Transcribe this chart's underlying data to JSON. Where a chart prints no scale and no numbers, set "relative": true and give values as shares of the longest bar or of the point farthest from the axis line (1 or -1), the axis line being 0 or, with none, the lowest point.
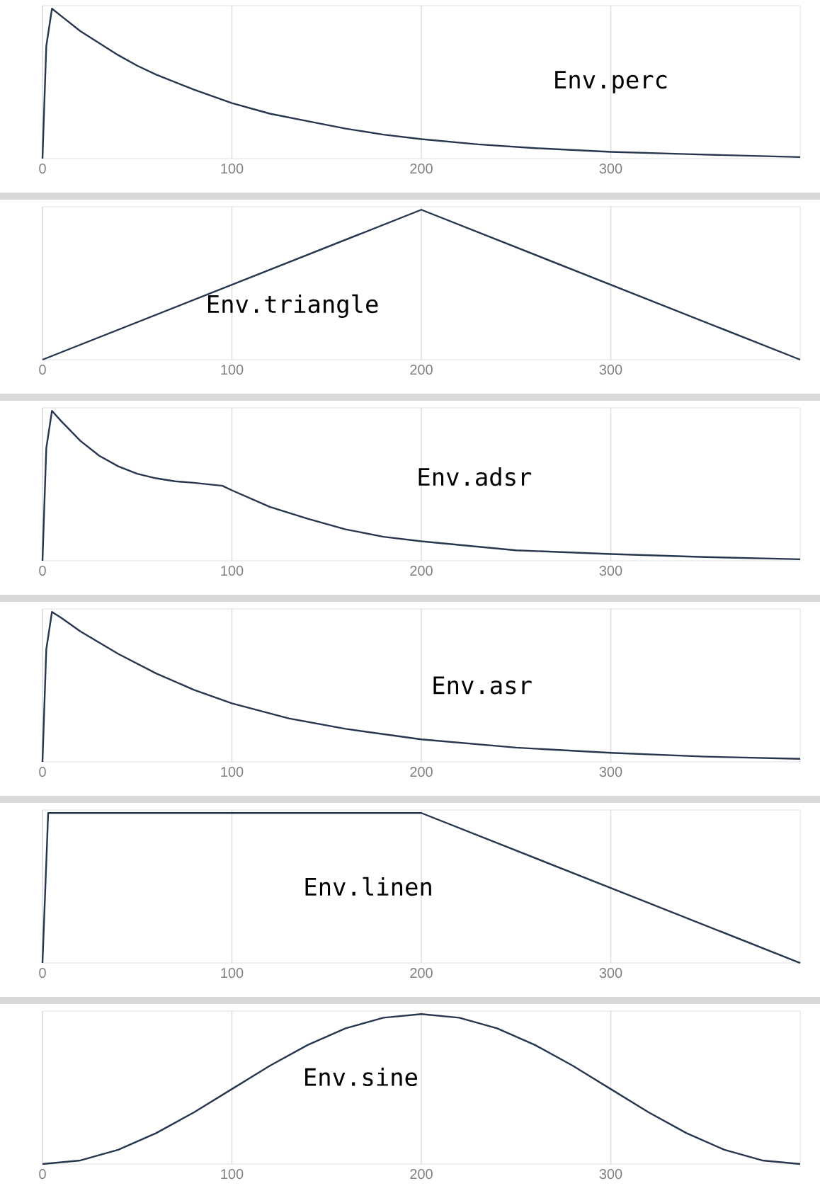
{
  "chart_data": [
    {
      "type": "line",
      "relative": true,
      "xlim": [
        0,
        400
      ],
      "xticks": [
        0,
        100,
        200,
        300
      ],
      "grid": "x",
      "color": "#27364f",
      "annotations": [
        "Env.perc"
      ],
      "x": [
        0,
        2,
        5,
        10,
        20,
        30,
        40,
        50,
        60,
        70,
        80,
        100,
        120,
        140,
        160,
        180,
        200,
        230,
        260,
        300,
        340,
        400
      ],
      "values": [
        0,
        0.75,
        1,
        0.95,
        0.85,
        0.77,
        0.69,
        0.62,
        0.56,
        0.51,
        0.46,
        0.37,
        0.3,
        0.25,
        0.2,
        0.16,
        0.13,
        0.095,
        0.07,
        0.045,
        0.03,
        0.01
      ]
    },
    {
      "type": "line",
      "relative": true,
      "xlim": [
        0,
        400
      ],
      "xticks": [
        0,
        100,
        200,
        300
      ],
      "grid": "x",
      "color": "#27364f",
      "annotations": [
        "Env.triangle"
      ],
      "x": [
        0,
        200,
        400
      ],
      "values": [
        0,
        1,
        0
      ]
    },
    {
      "type": "line",
      "relative": true,
      "xlim": [
        0,
        400
      ],
      "xticks": [
        0,
        100,
        200,
        300
      ],
      "grid": "x",
      "color": "#27364f",
      "annotations": [
        "Env.adsr"
      ],
      "x": [
        0,
        2,
        5,
        10,
        20,
        30,
        40,
        50,
        60,
        70,
        80,
        95,
        100,
        120,
        140,
        160,
        180,
        200,
        250,
        300,
        350,
        400
      ],
      "values": [
        0,
        0.75,
        1,
        0.93,
        0.8,
        0.7,
        0.63,
        0.58,
        0.55,
        0.53,
        0.52,
        0.5,
        0.47,
        0.36,
        0.28,
        0.21,
        0.16,
        0.13,
        0.07,
        0.045,
        0.025,
        0.01
      ]
    },
    {
      "type": "line",
      "relative": true,
      "xlim": [
        0,
        400
      ],
      "xticks": [
        0,
        100,
        200,
        300
      ],
      "grid": "x",
      "color": "#27364f",
      "annotations": [
        "Env.asr"
      ],
      "x": [
        0,
        2,
        5,
        10,
        20,
        40,
        60,
        80,
        100,
        130,
        160,
        200,
        250,
        300,
        350,
        400
      ],
      "values": [
        0,
        0.75,
        1,
        0.96,
        0.87,
        0.72,
        0.59,
        0.48,
        0.39,
        0.29,
        0.22,
        0.15,
        0.095,
        0.06,
        0.035,
        0.02
      ]
    },
    {
      "type": "line",
      "relative": true,
      "xlim": [
        0,
        400
      ],
      "xticks": [
        0,
        100,
        200,
        300
      ],
      "grid": "x",
      "color": "#27364f",
      "annotations": [
        "Env.linen"
      ],
      "x": [
        0,
        3,
        200,
        400
      ],
      "values": [
        0,
        1,
        1,
        0
      ]
    },
    {
      "type": "line",
      "relative": true,
      "xlim": [
        0,
        400
      ],
      "xticks": [
        0,
        100,
        200,
        300
      ],
      "grid": "x",
      "color": "#27364f",
      "annotations": [
        "Env.sine"
      ],
      "x": [
        0,
        20,
        40,
        60,
        80,
        100,
        120,
        140,
        160,
        180,
        200,
        220,
        240,
        260,
        280,
        300,
        320,
        340,
        360,
        380,
        400
      ],
      "values": [
        0,
        0.024,
        0.095,
        0.206,
        0.345,
        0.5,
        0.655,
        0.794,
        0.905,
        0.976,
        1,
        0.976,
        0.905,
        0.794,
        0.655,
        0.5,
        0.345,
        0.206,
        0.095,
        0.024,
        0
      ]
    }
  ]
}
